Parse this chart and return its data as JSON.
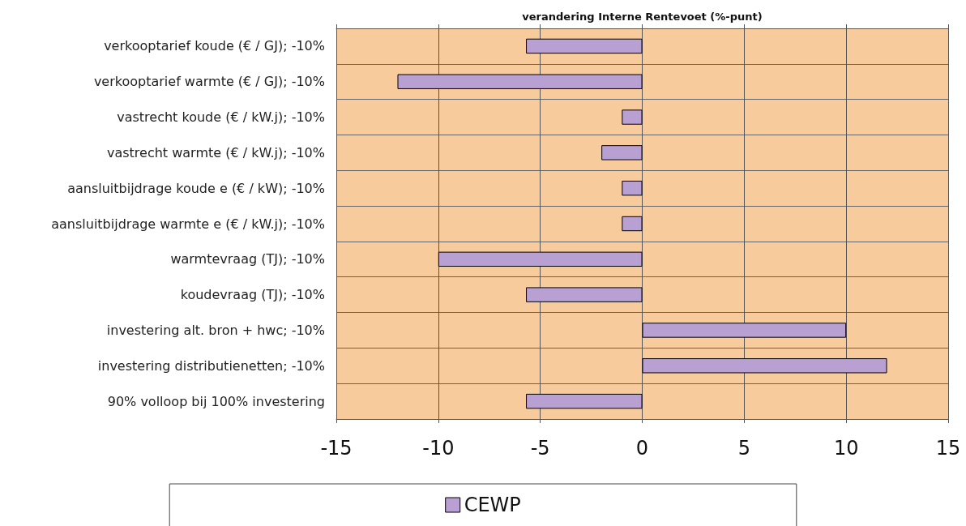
{
  "chart_data": {
    "type": "bar",
    "orientation": "horizontal",
    "xlabel": "verandering Interne Rentevoet (%-punt)",
    "categories": [
      "verkooptarief koude (€ / GJ); -10%",
      "verkooptarief warmte (€ / GJ); -10%",
      "vastrecht koude (€ / kW.j); -10%",
      "vastrecht warmte (€ / kW.j); -10%",
      "aansluitbijdrage koude e (€ / kW); -10%",
      "aansluitbijdrage warmte e (€ / kW.j); -10%",
      "warmtevraag (TJ); -10%",
      "koudevraag (TJ); -10%",
      "investering alt. bron + hwc; -10%",
      "investering distributienetten; -10%",
      "90% volloop bij 100% investering"
    ],
    "series": [
      {
        "name": "CEWP",
        "color": "#b9a0d2",
        "values": [
          -5.7,
          -12,
          -1,
          -2,
          -1,
          -1,
          -10,
          -5.7,
          10,
          12,
          -5.7
        ]
      }
    ],
    "xlim": [
      -15,
      15
    ],
    "xticks": [
      -15,
      -10,
      -5,
      0,
      5,
      10,
      15
    ],
    "grid": true,
    "legend": "bottom"
  }
}
